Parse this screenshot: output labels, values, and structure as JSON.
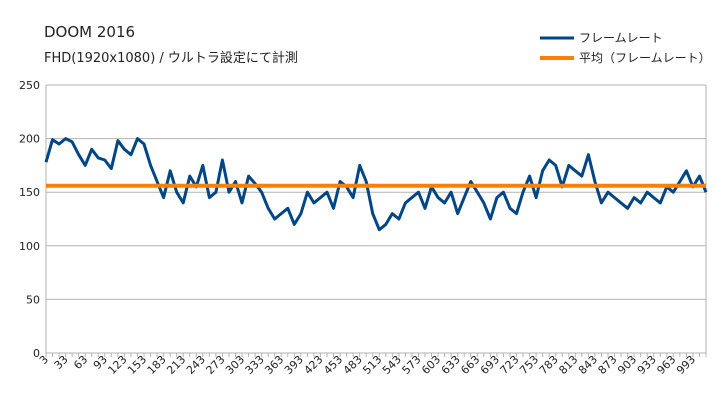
{
  "chart_data": {
    "type": "line",
    "title": "DOOM 2016",
    "subtitle": "FHD(1920x1080) / ウルトラ設定にて計測",
    "xlabel": "",
    "ylabel": "",
    "ylim": [
      0,
      250
    ],
    "yticks": [
      0,
      50,
      100,
      150,
      200,
      250
    ],
    "x_range": [
      3,
      1013
    ],
    "x_tick_labels": [
      "3",
      "33",
      "63",
      "93",
      "123",
      "153",
      "183",
      "213",
      "243",
      "273",
      "303",
      "333",
      "363",
      "393",
      "423",
      "453",
      "483",
      "513",
      "543",
      "573",
      "603",
      "633",
      "663",
      "693",
      "723",
      "753",
      "783",
      "813",
      "843",
      "873",
      "903",
      "933",
      "963",
      "993"
    ],
    "grid": true,
    "legend_position": "top-right",
    "series": [
      {
        "name": "フレームレート",
        "color": "#004586",
        "x": [
          3,
          13,
          23,
          33,
          43,
          53,
          63,
          73,
          83,
          93,
          103,
          113,
          123,
          133,
          143,
          153,
          163,
          173,
          183,
          193,
          203,
          213,
          223,
          233,
          243,
          253,
          263,
          273,
          283,
          293,
          303,
          313,
          323,
          333,
          343,
          353,
          363,
          373,
          383,
          393,
          403,
          413,
          423,
          433,
          443,
          453,
          463,
          473,
          483,
          493,
          503,
          513,
          523,
          533,
          543,
          553,
          563,
          573,
          583,
          593,
          603,
          613,
          623,
          633,
          643,
          653,
          663,
          673,
          683,
          693,
          703,
          713,
          723,
          733,
          743,
          753,
          763,
          773,
          783,
          793,
          803,
          813,
          823,
          833,
          843,
          853,
          863,
          873,
          883,
          893,
          903,
          913,
          923,
          933,
          943,
          953,
          963,
          973,
          983,
          993,
          1003,
          1013
        ],
        "values": [
          178,
          199,
          195,
          200,
          197,
          185,
          175,
          190,
          182,
          180,
          172,
          198,
          190,
          185,
          200,
          195,
          175,
          160,
          145,
          170,
          150,
          140,
          165,
          155,
          175,
          145,
          150,
          180,
          150,
          160,
          140,
          165,
          158,
          150,
          135,
          125,
          130,
          135,
          120,
          130,
          150,
          140,
          145,
          150,
          135,
          160,
          155,
          145,
          175,
          160,
          130,
          115,
          120,
          130,
          125,
          140,
          145,
          150,
          135,
          155,
          145,
          140,
          150,
          130,
          145,
          160,
          150,
          140,
          125,
          145,
          150,
          135,
          130,
          150,
          165,
          145,
          170,
          180,
          175,
          155,
          175,
          170,
          165,
          185,
          160,
          140,
          150,
          145,
          140,
          135,
          145,
          140,
          150,
          145,
          140,
          155,
          150,
          160,
          170,
          155,
          165,
          150
        ]
      },
      {
        "name": "平均（フレームレート）",
        "color": "#ff7f00",
        "x": [
          3,
          1013
        ],
        "values": [
          156,
          156
        ]
      }
    ]
  }
}
